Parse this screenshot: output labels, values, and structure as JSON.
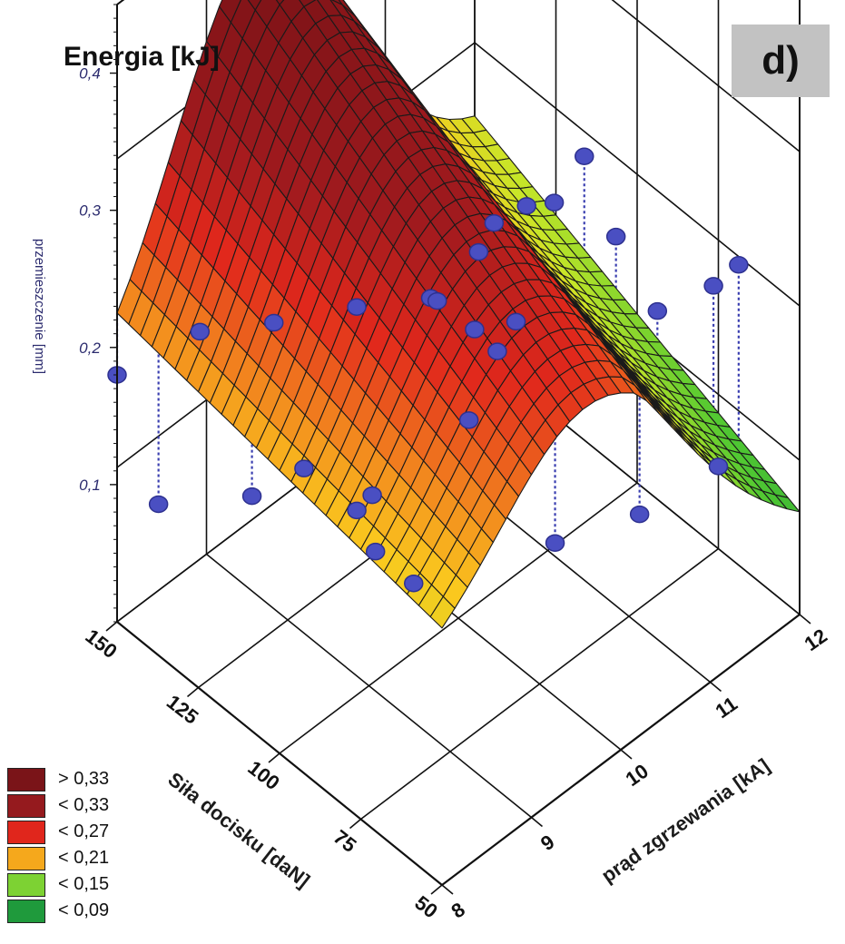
{
  "figure": {
    "title": "Energia [kJ]",
    "panel_label": "d)"
  },
  "legend": [
    {
      "label": "> 0,33",
      "color": "#7a1418"
    },
    {
      "label": "< 0,33",
      "color": "#951a1e"
    },
    {
      "label": "< 0,27",
      "color": "#e0261c"
    },
    {
      "label": "< 0,21",
      "color": "#f5a81c"
    },
    {
      "label": "< 0,15",
      "color": "#7dd233"
    },
    {
      "label": "< 0,09",
      "color": "#1f9a3c"
    }
  ],
  "chart_data": {
    "type": "surface3d",
    "title": "Energia [kJ]",
    "x_axis": {
      "label": "prąd zgrzewania [kA]",
      "ticks": [
        8,
        9,
        10,
        11,
        12
      ],
      "range": [
        8,
        12
      ]
    },
    "y_axis": {
      "label": "Siła docisku [daN]",
      "ticks": [
        50,
        75,
        100,
        125,
        150
      ],
      "range": [
        50,
        150
      ]
    },
    "z_axis": {
      "label": "przemieszczenie [mm]",
      "ticks": [
        "0,1",
        "0,2",
        "0,3",
        "0,4"
      ],
      "range": [
        0,
        0.45
      ]
    },
    "surface_levels": [
      0.09,
      0.15,
      0.21,
      0.27,
      0.33
    ],
    "surface_grid_size": 28,
    "points": [
      {
        "I": 8.0,
        "F": 150,
        "z": 0.18
      },
      {
        "I": 8.2,
        "F": 130,
        "z": 0.24
      },
      {
        "I": 8.3,
        "F": 110,
        "z": 0.28
      },
      {
        "I": 8.5,
        "F": 90,
        "z": 0.32
      },
      {
        "I": 8.6,
        "F": 70,
        "z": 0.36
      },
      {
        "I": 8.8,
        "F": 55,
        "z": 0.34
      },
      {
        "I": 8.1,
        "F": 140,
        "z": 0.1
      },
      {
        "I": 8.6,
        "F": 125,
        "z": 0.11
      },
      {
        "I": 9.0,
        "F": 120,
        "z": 0.12
      },
      {
        "I": 9.3,
        "F": 112,
        "z": 0.09
      },
      {
        "I": 9.4,
        "F": 110,
        "z": 0.1
      },
      {
        "I": 9.5,
        "F": 100,
        "z": 0.05
      },
      {
        "I": 9.4,
        "F": 90,
        "z": 0.28
      },
      {
        "I": 9.5,
        "F": 80,
        "z": 0.33
      },
      {
        "I": 9.6,
        "F": 78,
        "z": 0.35
      },
      {
        "I": 9.8,
        "F": 65,
        "z": 0.38
      },
      {
        "I": 10.0,
        "F": 95,
        "z": 0.22
      },
      {
        "I": 10.1,
        "F": 85,
        "z": 0.24
      },
      {
        "I": 10.3,
        "F": 105,
        "z": 0.12
      },
      {
        "I": 10.4,
        "F": 90,
        "z": 0.3
      },
      {
        "I": 10.5,
        "F": 75,
        "z": 0.36
      },
      {
        "I": 10.6,
        "F": 68,
        "z": 0.31
      },
      {
        "I": 10.7,
        "F": 58,
        "z": 0.27
      },
      {
        "I": 10.9,
        "F": 95,
        "z": 0.02
      },
      {
        "I": 11.3,
        "F": 80,
        "z": 0.05
      },
      {
        "I": 11.4,
        "F": 60,
        "z": 0.25
      },
      {
        "I": 11.5,
        "F": 55,
        "z": 0.27
      },
      {
        "I": 12.0,
        "F": 75,
        "z": 0.06
      },
      {
        "I": 9.8,
        "F": 120,
        "z": 0.02
      }
    ]
  }
}
